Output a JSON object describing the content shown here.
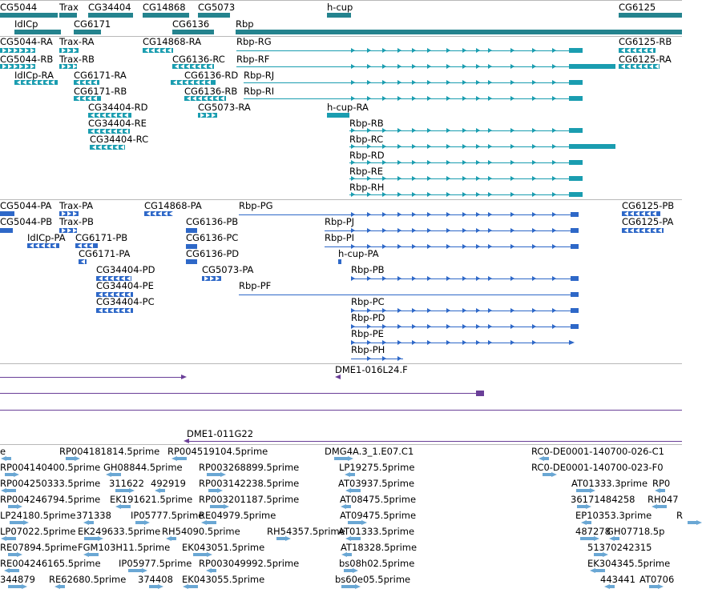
{
  "colors": {
    "gene": "#24838e",
    "rna": "#1a9db0",
    "protein": "#2e68c8",
    "clone": "#6a3f98",
    "est": "#6aa7d4",
    "separator": "#b8b8b8"
  },
  "tracks": {
    "genes": {
      "labels": [
        "CG5044",
        "Trax",
        "CG34404",
        "CG14868",
        "CG5073",
        "h-cup",
        "CG6125",
        "IdICp",
        "CG6171",
        "CG6136",
        "Rbp"
      ]
    },
    "transcripts": {
      "labels": [
        "CG5044-RA",
        "Trax-RA",
        "CG14868-RA",
        "Rbp-RG",
        "CG6125-RB",
        "CG5044-RB",
        "Trax-RB",
        "CG6136-RC",
        "Rbp-RF",
        "CG6125-RA",
        "IdICp-RA",
        "CG6171-RA",
        "CG6136-RD",
        "Rbp-RJ",
        "CG6171-RB",
        "CG6136-RB",
        "Rbp-RI",
        "CG34404-RD",
        "CG5073-RA",
        "h-cup-RA",
        "CG34404-RE",
        "Rbp-RB",
        "CG34404-RC",
        "Rbp-RC",
        "Rbp-RD",
        "Rbp-RE",
        "Rbp-RH"
      ]
    },
    "proteins": {
      "labels": [
        "CG5044-PA",
        "Trax-PA",
        "CG14868-PA",
        "Rbp-PG",
        "CG6125-PB",
        "CG5044-PB",
        "Trax-PB",
        "CG6136-PB",
        "Rbp-PJ",
        "CG6125-PA",
        "IdICp-PA",
        "CG6171-PB",
        "CG6136-PC",
        "Rbp-PI",
        "CG6171-PA",
        "CG6136-PD",
        "h-cup-PA",
        "CG34404-PD",
        "CG5073-PA",
        "Rbp-PB",
        "CG34404-PE",
        "Rbp-PF",
        "CG34404-PC",
        "Rbp-PC",
        "Rbp-PD",
        "Rbp-PE",
        "Rbp-PH"
      ]
    },
    "clones": {
      "labels": [
        "DME1-016L24.F",
        "DME1-011G22"
      ]
    },
    "ests": {
      "labels": [
        "e",
        "RP004181814.5prime",
        "RP004519104.5prime",
        "DMG4A.3_1.E07.C1",
        "RC0-DE0001-140700-026-C1",
        "RP004140400.5prime",
        "GH08844.5prime",
        "RP003268899.5prime",
        "LP19275.5prime",
        "RC0-DE0001-140700-023-F0",
        "RP004250333.5prime",
        "311622",
        "492919",
        "RP003142238.5prime",
        "AT03937.5prime",
        "AT01333.3prime",
        "RP0",
        "RP004246794.5prime",
        "EK191621.5prime",
        "RP003201187.5prime",
        "AT08475.5prime",
        "36171484258",
        "RH047",
        "LP24180.5prime",
        "371338",
        "IP05777.5prime",
        "RE04979.5prime",
        "AT09475.5prime",
        "EP10353.3prime",
        "R",
        "LP07022.5prime",
        "EK249633.5prime",
        "RH54090.5prime",
        "RH54357.5prime",
        "AT01333.5prime",
        "487278",
        "GH07718.5p",
        "RE07894.5prime",
        "FGM103H11.5prime",
        "EK043051.5prime",
        "AT18328.5prime",
        "51370242315",
        "RE004246165.5prime",
        "IP05977.5prime",
        "RP003049992.5prime",
        "bs08h02.5prime",
        "EK304345.5prime",
        "344879",
        "RE62680.5prime",
        "374408",
        "EK043055.5prime",
        "bs60e05.5prime",
        "443441",
        "AT0706"
      ]
    }
  }
}
